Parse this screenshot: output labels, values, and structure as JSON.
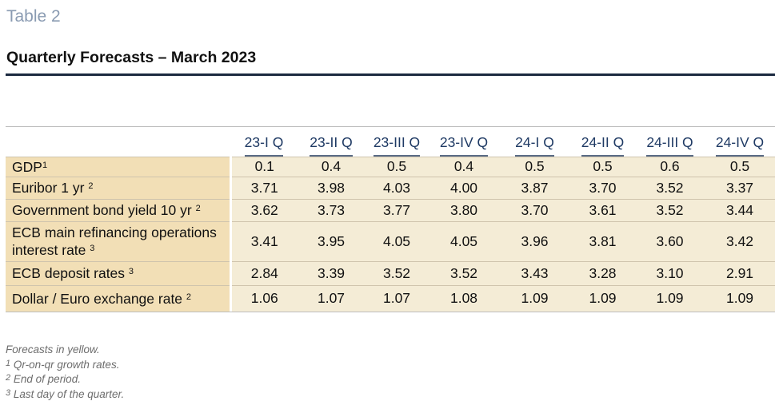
{
  "document": {
    "label": "Table 2",
    "title": "Quarterly Forecasts – March 2023"
  },
  "table": {
    "columns": [
      "23-I Q",
      "23-II Q",
      "23-III Q",
      "23-IV Q",
      "24-I Q",
      "24-II Q",
      "24-III Q",
      "24-IV Q"
    ],
    "rows": [
      {
        "label": "GDP",
        "sup": "1",
        "values": [
          "0.1",
          "0.4",
          "0.5",
          "0.4",
          "0.5",
          "0.5",
          "0.6",
          "0.5"
        ]
      },
      {
        "label": "Euribor 1 yr",
        "sup": "2",
        "values": [
          "3.71",
          "3.98",
          "4.03",
          "4.00",
          "3.87",
          "3.70",
          "3.52",
          "3.37"
        ]
      },
      {
        "label": "Government bond yield 10 yr",
        "sup": "2",
        "values": [
          "3.62",
          "3.73",
          "3.77",
          "3.80",
          "3.70",
          "3.61",
          "3.52",
          "3.44"
        ]
      },
      {
        "label": "ECB main refinancing operations interest rate",
        "sup": "3",
        "values": [
          "3.41",
          "3.95",
          "4.05",
          "4.05",
          "3.96",
          "3.81",
          "3.60",
          "3.42"
        ]
      },
      {
        "label": "ECB deposit rates",
        "sup": "3",
        "values": [
          "2.84",
          "3.39",
          "3.52",
          "3.52",
          "3.43",
          "3.28",
          "3.10",
          "2.91"
        ]
      },
      {
        "label": "Dollar / Euro exchange rate",
        "sup": "2",
        "values": [
          "1.06",
          "1.07",
          "1.07",
          "1.08",
          "1.09",
          "1.09",
          "1.09",
          "1.09"
        ]
      }
    ]
  },
  "notes": [
    {
      "sup": "",
      "text": "Forecasts in yellow."
    },
    {
      "sup": "1",
      "text": "Qr-on-qr growth rates."
    },
    {
      "sup": "2",
      "text": "End of period."
    },
    {
      "sup": "3",
      "text": "Last day of the quarter."
    }
  ],
  "colors": {
    "label_bg": "#f2dfb6",
    "forecast_bg": "#f4ecd6",
    "header_text": "#1f3a64",
    "title_rule": "#1b2a40",
    "table_label": "#8a9bb2"
  }
}
